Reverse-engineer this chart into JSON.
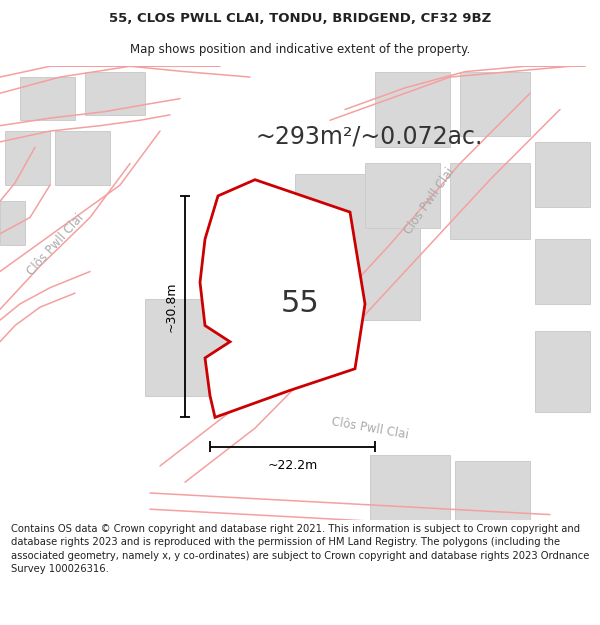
{
  "title_line1": "55, CLOS PWLL CLAI, TONDU, BRIDGEND, CF32 9BZ",
  "title_line2": "Map shows position and indicative extent of the property.",
  "area_text": "~293m²/~0.072ac.",
  "label_number": "55",
  "dim_height": "~30.8m",
  "dim_width": "~22.2m",
  "footer": "Contains OS data © Crown copyright and database right 2021. This information is subject to Crown copyright and database rights 2023 and is reproduced with the permission of HM Land Registry. The polygons (including the associated geometry, namely x, y co-ordinates) are subject to Crown copyright and database rights 2023 Ordnance Survey 100026316.",
  "map_bg": "#ffffff",
  "plot_color": "#cc0000",
  "plot_fill": "#ffffff",
  "road_line_color": "#f5a0a0",
  "building_color": "#d8d8d8",
  "building_edge": "#cccccc",
  "street_label_color": "#aaaaaa",
  "title_color": "#222222",
  "footer_color": "#222222",
  "title_fontsize": 9.5,
  "subtitle_fontsize": 8.5,
  "area_fontsize": 17,
  "label_fontsize": 22,
  "dim_fontsize": 9,
  "footer_fontsize": 7.2
}
